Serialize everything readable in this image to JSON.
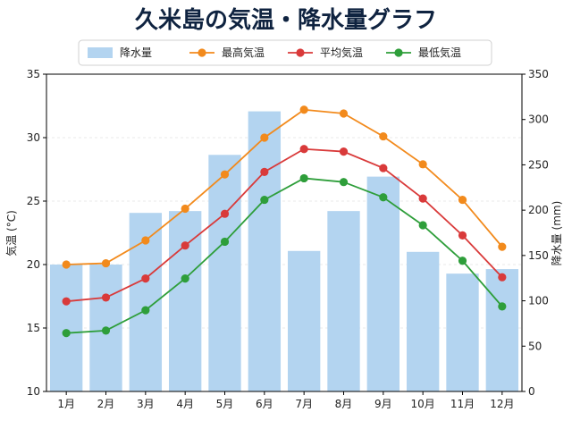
{
  "chart_data": {
    "type": "bar+line",
    "title": "久米島の気温・降水量グラフ",
    "categories": [
      "1月",
      "2月",
      "3月",
      "4月",
      "5月",
      "6月",
      "7月",
      "8月",
      "9月",
      "10月",
      "11月",
      "12月"
    ],
    "y_left": {
      "label": "気温 (°C)",
      "range": [
        10,
        35
      ],
      "ticks": [
        10,
        15,
        20,
        25,
        30,
        35
      ]
    },
    "y_right": {
      "label": "降水量 (mm)",
      "range": [
        0,
        350
      ],
      "ticks": [
        0,
        50,
        100,
        150,
        200,
        250,
        300,
        350
      ]
    },
    "bars": {
      "name": "降水量",
      "color": "#b3d4f0",
      "values": [
        140,
        140,
        197,
        199,
        261,
        309,
        155,
        199,
        237,
        154,
        130,
        135
      ]
    },
    "series": [
      {
        "name": "最高気温",
        "color": "#f28a1c",
        "values": [
          20.0,
          20.1,
          21.9,
          24.4,
          27.1,
          30.0,
          32.2,
          31.9,
          30.1,
          27.9,
          25.1,
          21.4
        ]
      },
      {
        "name": "平均気温",
        "color": "#d93a3a",
        "values": [
          17.1,
          17.4,
          18.9,
          21.5,
          24.0,
          27.3,
          29.1,
          28.9,
          27.6,
          25.2,
          22.3,
          19.0
        ]
      },
      {
        "name": "最低気温",
        "color": "#2e9e3a",
        "values": [
          14.6,
          14.8,
          16.4,
          18.9,
          21.8,
          25.1,
          26.8,
          26.5,
          25.3,
          23.1,
          20.3,
          16.7
        ]
      }
    ],
    "grid": true,
    "legend_position": "top"
  }
}
